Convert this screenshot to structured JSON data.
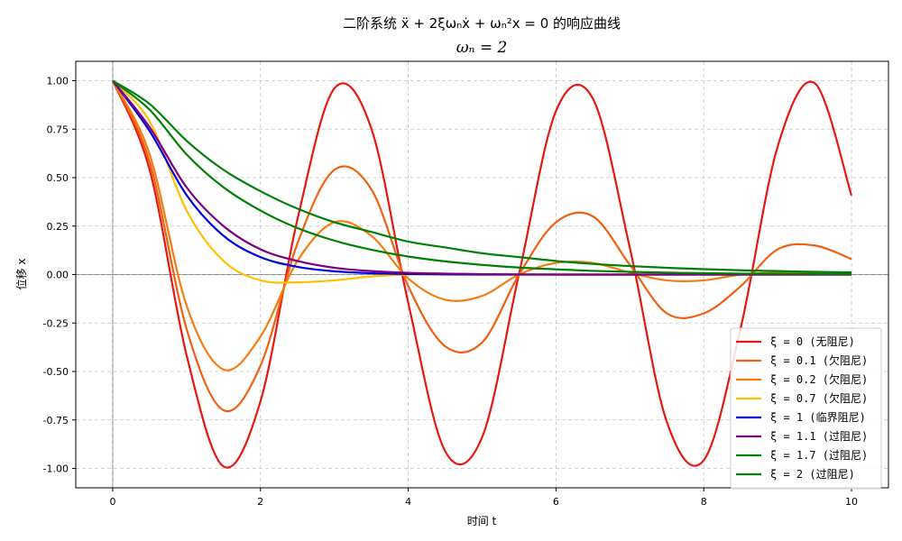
{
  "chart_data": {
    "type": "line",
    "title": "二阶系统 ẍ + 2ξωₙẋ + ωₙ²x = 0 的响应曲线",
    "subtitle": "ωₙ = 2",
    "xlabel": "时间 t",
    "ylabel": "位移 x",
    "xlim": [
      -0.5,
      10.5
    ],
    "ylim": [
      -1.1,
      1.1
    ],
    "xticks": [
      0,
      2,
      4,
      6,
      8,
      10
    ],
    "yticks": [
      -1.0,
      -0.75,
      -0.5,
      -0.25,
      0.0,
      0.25,
      0.5,
      0.75,
      1.0
    ],
    "grid": true,
    "legend_position": "lower-right",
    "omega_n": 2,
    "x": [
      0,
      0.5,
      1,
      1.5,
      2,
      2.5,
      3,
      3.5,
      4,
      4.5,
      5,
      5.5,
      6,
      6.5,
      7,
      7.5,
      8,
      8.5,
      9,
      9.5,
      10
    ],
    "series": [
      {
        "name": "ξ = 0 (无阻尼)",
        "zeta": 0,
        "color": "#e8170f",
        "values": [
          1.0,
          0.54,
          -0.416,
          -0.99,
          -0.654,
          0.284,
          0.96,
          0.754,
          -0.146,
          -0.911,
          -0.839,
          0.004,
          0.844,
          0.907,
          0.137,
          -0.76,
          -0.958,
          -0.275,
          0.66,
          0.988,
          0.408
        ]
      },
      {
        "name": "ξ = 0.1 (欠阻尼)",
        "zeta": 0.1,
        "color": "#f06010",
        "values": [
          1.0,
          0.58,
          -0.28,
          -0.7,
          -0.47,
          0.16,
          0.54,
          0.44,
          -0.06,
          -0.37,
          -0.35,
          0.0,
          0.27,
          0.3,
          0.05,
          -0.2,
          -0.2,
          -0.06,
          0.13,
          0.15,
          0.08
        ]
      },
      {
        "name": "ξ = 0.2 (欠阻尼)",
        "zeta": 0.2,
        "color": "#f57c10",
        "values": [
          1.0,
          0.62,
          -0.16,
          -0.49,
          -0.32,
          0.07,
          0.27,
          0.2,
          -0.02,
          -0.13,
          -0.11,
          0.0,
          0.06,
          0.06,
          0.01,
          -0.03,
          -0.03,
          0.0,
          0.01,
          0.01,
          0.01
        ]
      },
      {
        "name": "ξ = 0.7 (欠阻尼)",
        "zeta": 0.7,
        "color": "#ffc000",
        "values": [
          1.0,
          0.79,
          0.33,
          0.07,
          -0.03,
          -0.04,
          -0.03,
          -0.01,
          0.0,
          0.0,
          0.0,
          0.0,
          0.0,
          0.0,
          0.0,
          0.0,
          0.0,
          0.0,
          0.0,
          0.0,
          0.0
        ]
      },
      {
        "name": "ξ = 1 (临界阻尼)",
        "zeta": 1,
        "color": "#0000e6",
        "values": [
          1.0,
          0.74,
          0.41,
          0.2,
          0.09,
          0.04,
          0.017,
          0.007,
          0.003,
          0.001,
          0.0,
          0.0,
          0.0,
          0.0,
          0.0,
          0.0,
          0.0,
          0.0,
          0.0,
          0.0,
          0.0
        ]
      },
      {
        "name": "ξ = 1.1 (过阻尼)",
        "zeta": 1.1,
        "color": "#800080",
        "values": [
          1.0,
          0.76,
          0.45,
          0.25,
          0.13,
          0.07,
          0.035,
          0.018,
          0.009,
          0.005,
          0.002,
          0.001,
          0.0,
          0.0,
          0.0,
          0.0,
          0.0,
          0.0,
          0.0,
          0.0,
          0.0
        ]
      },
      {
        "name": "ξ = 1.7 (过阻尼)",
        "zeta": 1.7,
        "color": "#008000",
        "values": [
          1.0,
          0.85,
          0.62,
          0.45,
          0.33,
          0.24,
          0.175,
          0.128,
          0.093,
          0.068,
          0.05,
          0.036,
          0.027,
          0.019,
          0.014,
          0.01,
          0.007,
          0.005,
          0.004,
          0.003,
          0.002
        ]
      },
      {
        "name": "ξ = 2 (过阻尼)",
        "zeta": 2,
        "color": "#00800a",
        "values": [
          1.0,
          0.88,
          0.69,
          0.54,
          0.43,
          0.34,
          0.27,
          0.22,
          0.17,
          0.14,
          0.11,
          0.09,
          0.07,
          0.055,
          0.044,
          0.035,
          0.028,
          0.022,
          0.018,
          0.014,
          0.011
        ]
      }
    ]
  }
}
